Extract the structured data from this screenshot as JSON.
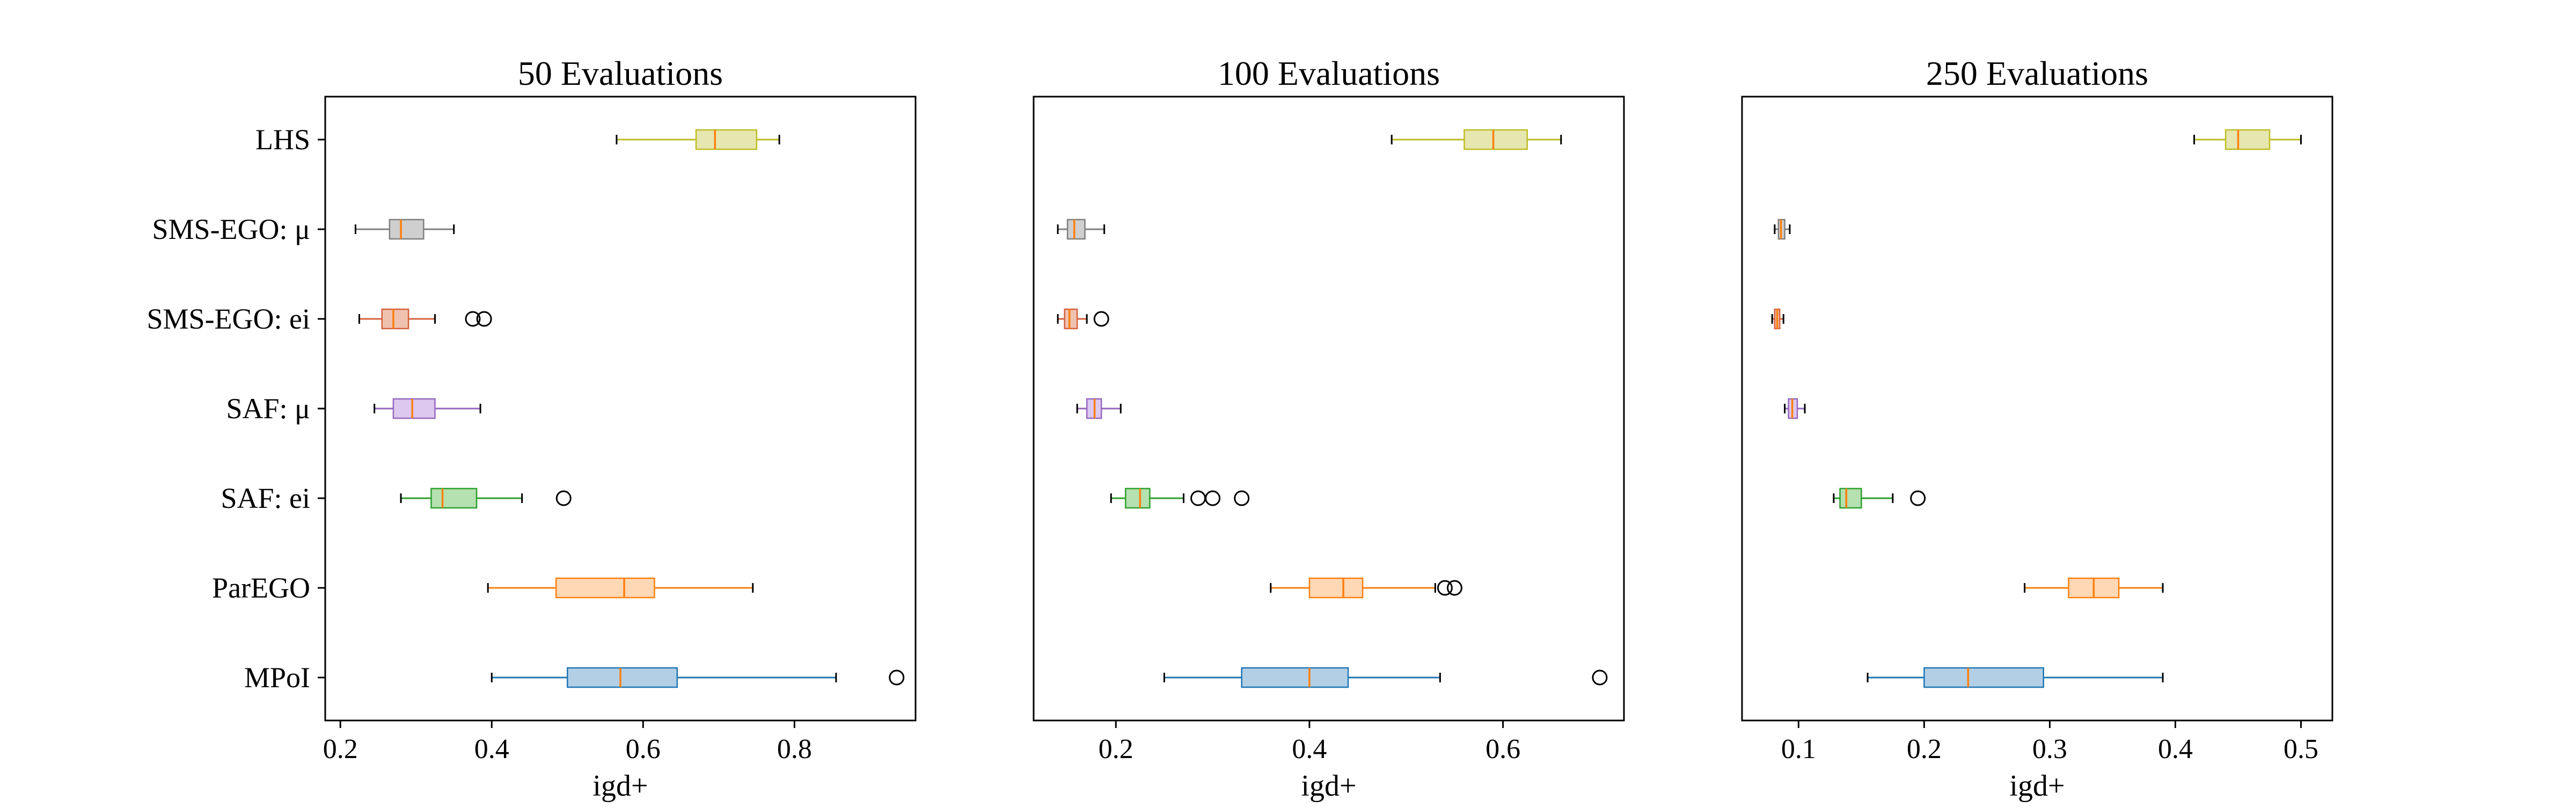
{
  "chart_data": [
    {
      "type": "boxplot",
      "title": "50 Evaluations",
      "xlabel": "igd+",
      "xlim": [
        0.18,
        0.96
      ],
      "xticks": [
        0.2,
        0.4,
        0.6,
        0.8
      ],
      "xtick_labels": [
        "0.2",
        "0.4",
        "0.6",
        "0.8"
      ],
      "categories": [
        "MPoI",
        "ParEGO",
        "SAF: ei",
        "SAF: μ",
        "SMS-EGO: ei",
        "SMS-EGO: μ",
        "LHS"
      ],
      "boxes": [
        {
          "whislo": 0.4,
          "q1": 0.5,
          "med": 0.57,
          "q3": 0.645,
          "whishi": 0.855,
          "fliers": [
            0.935
          ]
        },
        {
          "whislo": 0.395,
          "q1": 0.485,
          "med": 0.575,
          "q3": 0.615,
          "whishi": 0.745,
          "fliers": []
        },
        {
          "whislo": 0.28,
          "q1": 0.32,
          "med": 0.335,
          "q3": 0.38,
          "whishi": 0.44,
          "fliers": [
            0.495
          ]
        },
        {
          "whislo": 0.245,
          "q1": 0.27,
          "med": 0.295,
          "q3": 0.325,
          "whishi": 0.385,
          "fliers": []
        },
        {
          "whislo": 0.225,
          "q1": 0.255,
          "med": 0.27,
          "q3": 0.29,
          "whishi": 0.325,
          "fliers": [
            0.375,
            0.39
          ]
        },
        {
          "whislo": 0.22,
          "q1": 0.265,
          "med": 0.28,
          "q3": 0.31,
          "whishi": 0.35,
          "fliers": []
        },
        {
          "whislo": 0.565,
          "q1": 0.67,
          "med": 0.695,
          "q3": 0.75,
          "whishi": 0.78,
          "fliers": []
        }
      ]
    },
    {
      "type": "boxplot",
      "title": "100 Evaluations",
      "xlabel": "igd+",
      "xlim": [
        0.115,
        0.725
      ],
      "xticks": [
        0.2,
        0.4,
        0.6
      ],
      "xtick_labels": [
        "0.2",
        "0.4",
        "0.6"
      ],
      "categories": [
        "MPoI",
        "ParEGO",
        "SAF: ei",
        "SAF: μ",
        "SMS-EGO: ei",
        "SMS-EGO: μ",
        "LHS"
      ],
      "boxes": [
        {
          "whislo": 0.25,
          "q1": 0.33,
          "med": 0.4,
          "q3": 0.44,
          "whishi": 0.535,
          "fliers": [
            0.7
          ]
        },
        {
          "whislo": 0.36,
          "q1": 0.4,
          "med": 0.435,
          "q3": 0.455,
          "whishi": 0.53,
          "fliers": [
            0.54,
            0.55
          ]
        },
        {
          "whislo": 0.195,
          "q1": 0.21,
          "med": 0.225,
          "q3": 0.235,
          "whishi": 0.27,
          "fliers": [
            0.285,
            0.3,
            0.33
          ]
        },
        {
          "whislo": 0.16,
          "q1": 0.17,
          "med": 0.178,
          "q3": 0.185,
          "whishi": 0.205,
          "fliers": []
        },
        {
          "whislo": 0.14,
          "q1": 0.147,
          "med": 0.152,
          "q3": 0.16,
          "whishi": 0.17,
          "fliers": [
            0.185
          ]
        },
        {
          "whislo": 0.14,
          "q1": 0.15,
          "med": 0.157,
          "q3": 0.168,
          "whishi": 0.188,
          "fliers": []
        },
        {
          "whislo": 0.485,
          "q1": 0.56,
          "med": 0.59,
          "q3": 0.625,
          "whishi": 0.66,
          "fliers": []
        }
      ]
    },
    {
      "type": "boxplot",
      "title": "250 Evaluations",
      "xlabel": "igd+",
      "xlim": [
        0.055,
        0.525
      ],
      "xticks": [
        0.1,
        0.2,
        0.3,
        0.4,
        0.5
      ],
      "xtick_labels": [
        "0.1",
        "0.2",
        "0.3",
        "0.4",
        "0.5"
      ],
      "categories": [
        "MPoI",
        "ParEGO",
        "SAF: ei",
        "SAF: μ",
        "SMS-EGO: ei",
        "SMS-EGO: μ",
        "LHS"
      ],
      "boxes": [
        {
          "whislo": 0.155,
          "q1": 0.2,
          "med": 0.235,
          "q3": 0.295,
          "whishi": 0.39,
          "fliers": []
        },
        {
          "whislo": 0.28,
          "q1": 0.315,
          "med": 0.335,
          "q3": 0.355,
          "whishi": 0.39,
          "fliers": []
        },
        {
          "whislo": 0.128,
          "q1": 0.133,
          "med": 0.138,
          "q3": 0.15,
          "whishi": 0.175,
          "fliers": [
            0.195
          ]
        },
        {
          "whislo": 0.089,
          "q1": 0.092,
          "med": 0.095,
          "q3": 0.099,
          "whishi": 0.105,
          "fliers": []
        },
        {
          "whislo": 0.079,
          "q1": 0.081,
          "med": 0.083,
          "q3": 0.085,
          "whishi": 0.088,
          "fliers": []
        },
        {
          "whislo": 0.081,
          "q1": 0.084,
          "med": 0.086,
          "q3": 0.089,
          "whishi": 0.093,
          "fliers": []
        },
        {
          "whislo": 0.415,
          "q1": 0.44,
          "med": 0.45,
          "q3": 0.475,
          "whishi": 0.5,
          "fliers": []
        }
      ]
    }
  ],
  "colors": {
    "series": [
      "#1f77b4",
      "#ff7f0e",
      "#2ca02c",
      "#9467bd",
      "#d6603d",
      "#7f7f7f",
      "#bcbd22"
    ],
    "fills": [
      "#b3cfe6",
      "#ffd8b5",
      "#b5e0b0",
      "#ddc8ef",
      "#efc2b0",
      "#cfcfcf",
      "#e6e6b0"
    ],
    "median": "#ff7f0e",
    "cap": "#000000",
    "flier": "#000000"
  }
}
